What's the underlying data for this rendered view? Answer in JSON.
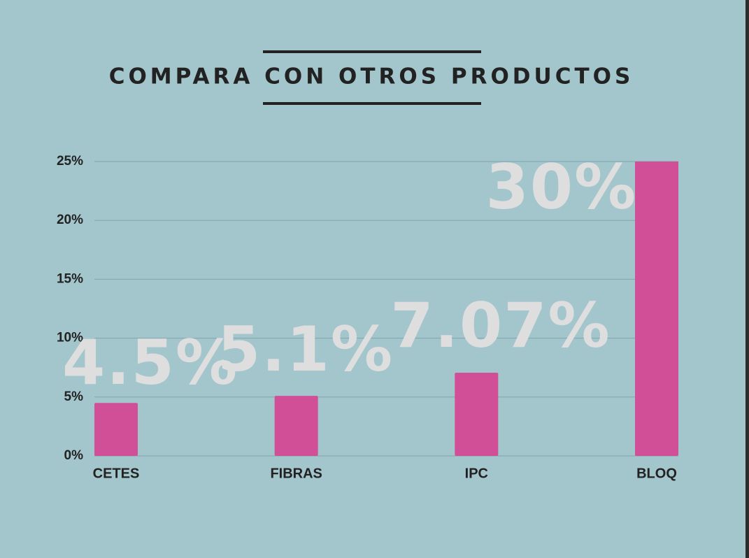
{
  "chart_data": {
    "type": "bar",
    "title": "COMPARA CON OTROS PRODUCTOS",
    "categories": [
      "CETES",
      "FIBRAS",
      "IPC",
      "BLOQ"
    ],
    "values": [
      4.5,
      5.1,
      7.07,
      30
    ],
    "value_labels": [
      "4.5%",
      "5.1%",
      "7.07%",
      "30%"
    ],
    "color": "#d14f96",
    "ylim": [
      0,
      25
    ],
    "yticks": [
      {
        "value": 0,
        "label": "0%"
      },
      {
        "value": 5,
        "label": "5%"
      },
      {
        "value": 10,
        "label": "10%"
      },
      {
        "value": 15,
        "label": "15%"
      },
      {
        "value": 20,
        "label": "20%"
      },
      {
        "value": 25,
        "label": "25%"
      }
    ],
    "grid": true
  }
}
